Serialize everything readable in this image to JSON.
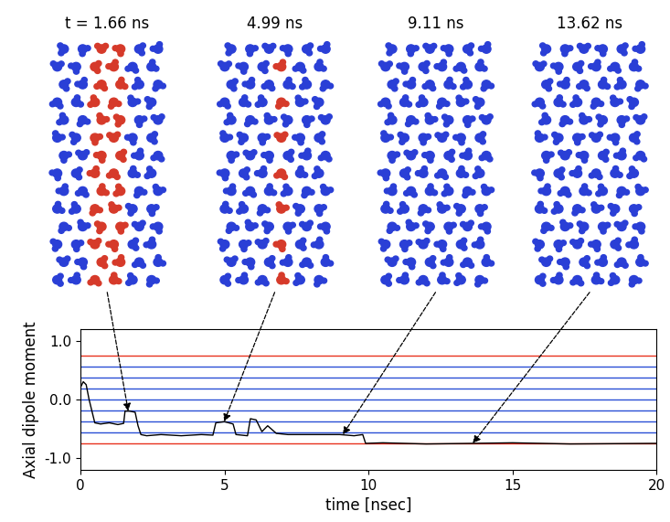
{
  "chart_data": {
    "type": "line",
    "xlabel": "time [nsec]",
    "ylabel": "Axial dipole moment",
    "x": [
      0,
      0.1,
      0.2,
      0.3,
      0.4,
      0.5,
      0.7,
      1.0,
      1.3,
      1.5,
      1.55,
      1.7,
      1.9,
      2.0,
      2.1,
      2.3,
      2.8,
      3.5,
      4.2,
      4.6,
      4.7,
      5.0,
      5.3,
      5.4,
      5.8,
      5.9,
      6.1,
      6.3,
      6.5,
      6.8,
      7.2,
      8.0,
      9.0,
      9.5,
      9.8,
      9.9,
      10.5,
      12,
      13.62,
      15,
      17,
      20
    ],
    "values": [
      0.2,
      0.3,
      0.25,
      0.0,
      -0.2,
      -0.4,
      -0.42,
      -0.4,
      -0.43,
      -0.41,
      -0.2,
      -0.2,
      -0.22,
      -0.45,
      -0.6,
      -0.62,
      -0.6,
      -0.62,
      -0.6,
      -0.61,
      -0.4,
      -0.38,
      -0.42,
      -0.6,
      -0.62,
      -0.33,
      -0.35,
      -0.55,
      -0.45,
      -0.58,
      -0.6,
      -0.6,
      -0.6,
      -0.62,
      -0.6,
      -0.75,
      -0.74,
      -0.76,
      -0.75,
      -0.74,
      -0.76,
      -0.75
    ],
    "color": "#000000",
    "reference_lines": [
      {
        "value": 0.75,
        "color": "#e8321e"
      },
      {
        "value": 0.5625,
        "color": "#2a4fd6"
      },
      {
        "value": 0.375,
        "color": "#2a4fd6"
      },
      {
        "value": 0.1875,
        "color": "#2a4fd6"
      },
      {
        "value": 0.0,
        "color": "#2a4fd6"
      },
      {
        "value": -0.1875,
        "color": "#2a4fd6"
      },
      {
        "value": -0.375,
        "color": "#2a4fd6"
      },
      {
        "value": -0.5625,
        "color": "#2a4fd6"
      },
      {
        "value": -0.75,
        "color": "#e8321e"
      }
    ],
    "xlim": [
      0,
      20
    ],
    "xticks": [
      0,
      5,
      10,
      15,
      20
    ],
    "ylim": [
      -1.2,
      1.2
    ],
    "yticks": [
      {
        "value": -1.0,
        "label": "-1.0"
      },
      {
        "value": 0.0,
        "label": "0.0"
      },
      {
        "value": 1.0,
        "label": "1.0"
      }
    ]
  },
  "snapshots": [
    {
      "label": "t = 1.66 ns",
      "time": 1.66,
      "colors": [
        "#2a3fd6",
        "#d63a2a"
      ]
    },
    {
      "label": "4.99 ns",
      "time": 4.99,
      "colors": [
        "#2a3fd6",
        "#d63a2a"
      ]
    },
    {
      "label": "9.11 ns",
      "time": 9.11,
      "colors": [
        "#2a3fd6"
      ]
    },
    {
      "label": "13.62 ns",
      "time": 13.62,
      "colors": [
        "#2a3fd6"
      ]
    }
  ]
}
